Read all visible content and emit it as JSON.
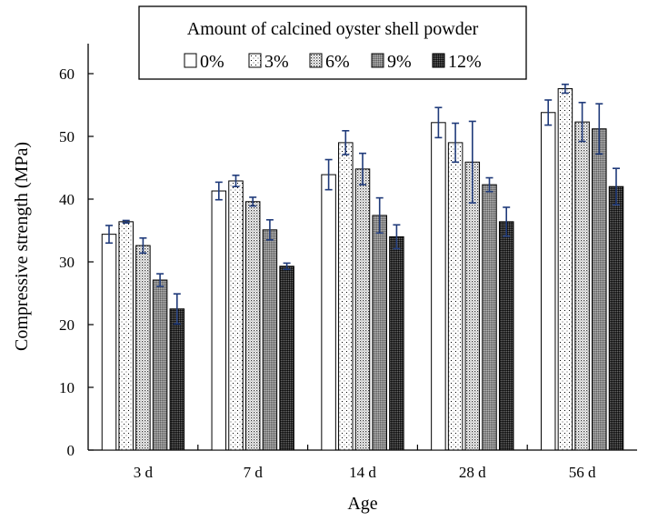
{
  "chart_data": {
    "type": "bar",
    "title": "",
    "xlabel": "Age",
    "ylabel": "Compressive strength (MPa)",
    "ylim": [
      0,
      65
    ],
    "yticks": [
      0,
      10,
      20,
      30,
      40,
      50,
      60
    ],
    "grid": false,
    "legend": {
      "title": "Amount of calcined oyster shell powder",
      "placement": "top-center"
    },
    "categories": [
      "3 d",
      "7 d",
      "14 d",
      "28 d",
      "56 d"
    ],
    "series": [
      {
        "name": "0%",
        "pattern": "white",
        "values": [
          34.4,
          41.3,
          43.9,
          52.2,
          53.8
        ],
        "errors": [
          1.4,
          1.4,
          2.4,
          2.4,
          2.0
        ]
      },
      {
        "name": "3%",
        "pattern": "dots-sparse",
        "values": [
          36.4,
          42.9,
          49.0,
          49.0,
          57.6
        ],
        "errors": [
          0.2,
          0.9,
          1.9,
          3.1,
          0.7
        ]
      },
      {
        "name": "6%",
        "pattern": "dots-dense",
        "values": [
          32.6,
          39.6,
          44.8,
          45.9,
          52.3
        ],
        "errors": [
          1.2,
          0.7,
          2.5,
          6.5,
          3.1
        ]
      },
      {
        "name": "9%",
        "pattern": "grey",
        "values": [
          27.1,
          35.1,
          37.4,
          42.3,
          51.2
        ],
        "errors": [
          1.0,
          1.6,
          2.8,
          1.1,
          4.0
        ]
      },
      {
        "name": "12%",
        "pattern": "dark",
        "values": [
          22.5,
          29.3,
          34.0,
          36.4,
          42.0
        ],
        "errors": [
          2.4,
          0.5,
          1.9,
          2.3,
          2.9
        ]
      }
    ]
  }
}
